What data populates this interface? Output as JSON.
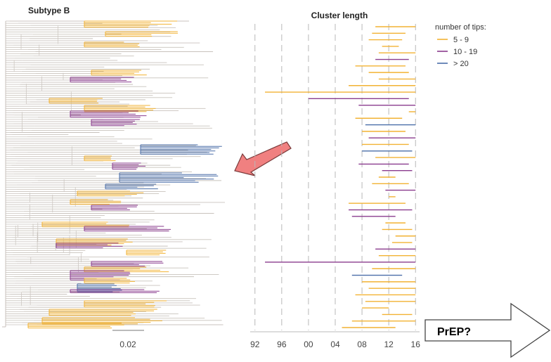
{
  "tree_panel": {
    "title": "Subtype B",
    "scale_label": "0.02",
    "colors": {
      "background": "#c8c2bc",
      "small": "#f2b233",
      "medium": "#8a3b8e",
      "large": "#4a6ea8"
    }
  },
  "callout": {
    "label": "PrEP?"
  },
  "chart_data": {
    "type": "bar",
    "orientation": "horizontal-range",
    "title": "Cluster length",
    "x_tick_labels": [
      "92",
      "96",
      "00",
      "04",
      "08",
      "12",
      "16"
    ],
    "x_ticks": [
      1992,
      1996,
      2000,
      2004,
      2008,
      2012,
      2016
    ],
    "xlim": [
      1991.5,
      2016.5
    ],
    "grid": "vertical dashed",
    "legend": {
      "title": "number of tips:",
      "placement": "top-right",
      "entries": [
        {
          "label": "5 - 9",
          "color": "#f2b233"
        },
        {
          "label": "10 - 19",
          "color": "#8a3b8e"
        },
        {
          "label": "> 20",
          "color": "#4a6ea8"
        }
      ]
    },
    "series": [
      {
        "name": "5 - 9",
        "color": "#f2b233"
      },
      {
        "name": "10 - 19",
        "color": "#8a3b8e"
      },
      {
        "name": "> 20",
        "color": "#4a6ea8"
      }
    ],
    "clusters": [
      {
        "start": 2010.0,
        "end": 2016.0,
        "size": "5 - 9"
      },
      {
        "start": 2009.5,
        "end": 2014.5,
        "size": "5 - 9"
      },
      {
        "start": 2009.0,
        "end": 2014.0,
        "size": "5 - 9"
      },
      {
        "start": 2011.0,
        "end": 2013.5,
        "size": "5 - 9"
      },
      {
        "start": 2010.5,
        "end": 2016.0,
        "size": "5 - 9"
      },
      {
        "start": 2010.0,
        "end": 2015.0,
        "size": "10 - 19"
      },
      {
        "start": 2007.0,
        "end": 2014.5,
        "size": "5 - 9"
      },
      {
        "start": 2009.0,
        "end": 2015.0,
        "size": "5 - 9"
      },
      {
        "start": 2010.5,
        "end": 2016.0,
        "size": "5 - 9"
      },
      {
        "start": 2006.0,
        "end": 2016.0,
        "size": "5 - 9"
      },
      {
        "start": 1993.5,
        "end": 2016.0,
        "size": "5 - 9"
      },
      {
        "start": 2000.0,
        "end": 2015.0,
        "size": "10 - 19"
      },
      {
        "start": 2007.5,
        "end": 2016.0,
        "size": "10 - 19"
      },
      {
        "start": 2015.0,
        "end": 2016.0,
        "size": "5 - 9"
      },
      {
        "start": 2007.0,
        "end": 2014.0,
        "size": "5 - 9"
      },
      {
        "start": 2008.5,
        "end": 2016.0,
        "size": "> 20"
      },
      {
        "start": 2008.0,
        "end": 2014.5,
        "size": "5 - 9"
      },
      {
        "start": 2009.0,
        "end": 2016.0,
        "size": "10 - 19"
      },
      {
        "start": 2008.0,
        "end": 2015.0,
        "size": "5 - 9"
      },
      {
        "start": 2008.0,
        "end": 2015.5,
        "size": "> 20"
      },
      {
        "start": 2010.0,
        "end": 2016.0,
        "size": "5 - 9"
      },
      {
        "start": 2007.5,
        "end": 2015.0,
        "size": "10 - 19"
      },
      {
        "start": 2011.0,
        "end": 2015.5,
        "size": "10 - 19"
      },
      {
        "start": 2010.5,
        "end": 2013.0,
        "size": "5 - 9"
      },
      {
        "start": 2009.5,
        "end": 2015.0,
        "size": "5 - 9"
      },
      {
        "start": 2011.5,
        "end": 2016.0,
        "size": "10 - 19"
      },
      {
        "start": 2012.0,
        "end": 2013.0,
        "size": "5 - 9"
      },
      {
        "start": 2006.0,
        "end": 2014.5,
        "size": "5 - 9"
      },
      {
        "start": 2006.0,
        "end": 2015.5,
        "size": "10 - 19"
      },
      {
        "start": 2006.5,
        "end": 2013.0,
        "size": "10 - 19"
      },
      {
        "start": 2011.5,
        "end": 2014.5,
        "size": "5 - 9"
      },
      {
        "start": 2011.0,
        "end": 2015.5,
        "size": "5 - 9"
      },
      {
        "start": 2013.0,
        "end": 2016.0,
        "size": "5 - 9"
      },
      {
        "start": 2012.5,
        "end": 2015.5,
        "size": "5 - 9"
      },
      {
        "start": 2010.0,
        "end": 2016.0,
        "size": "10 - 19"
      },
      {
        "start": 2010.5,
        "end": 2016.0,
        "size": "5 - 9"
      },
      {
        "start": 1993.5,
        "end": 2016.0,
        "size": "10 - 19"
      },
      {
        "start": 2009.5,
        "end": 2016.0,
        "size": "5 - 9"
      },
      {
        "start": 2006.5,
        "end": 2014.0,
        "size": "> 20"
      },
      {
        "start": 2008.0,
        "end": 2016.0,
        "size": "5 - 9"
      },
      {
        "start": 2009.0,
        "end": 2016.0,
        "size": "5 - 9"
      },
      {
        "start": 2007.0,
        "end": 2016.0,
        "size": "5 - 9"
      },
      {
        "start": 2008.5,
        "end": 2016.0,
        "size": "5 - 9"
      },
      {
        "start": 2008.0,
        "end": 2012.0,
        "size": "5 - 9"
      },
      {
        "start": 2011.0,
        "end": 2015.5,
        "size": "5 - 9"
      },
      {
        "start": 2006.5,
        "end": 2016.0,
        "size": "5 - 9"
      },
      {
        "start": 2005.0,
        "end": 2013.0,
        "size": "5 - 9"
      }
    ]
  }
}
